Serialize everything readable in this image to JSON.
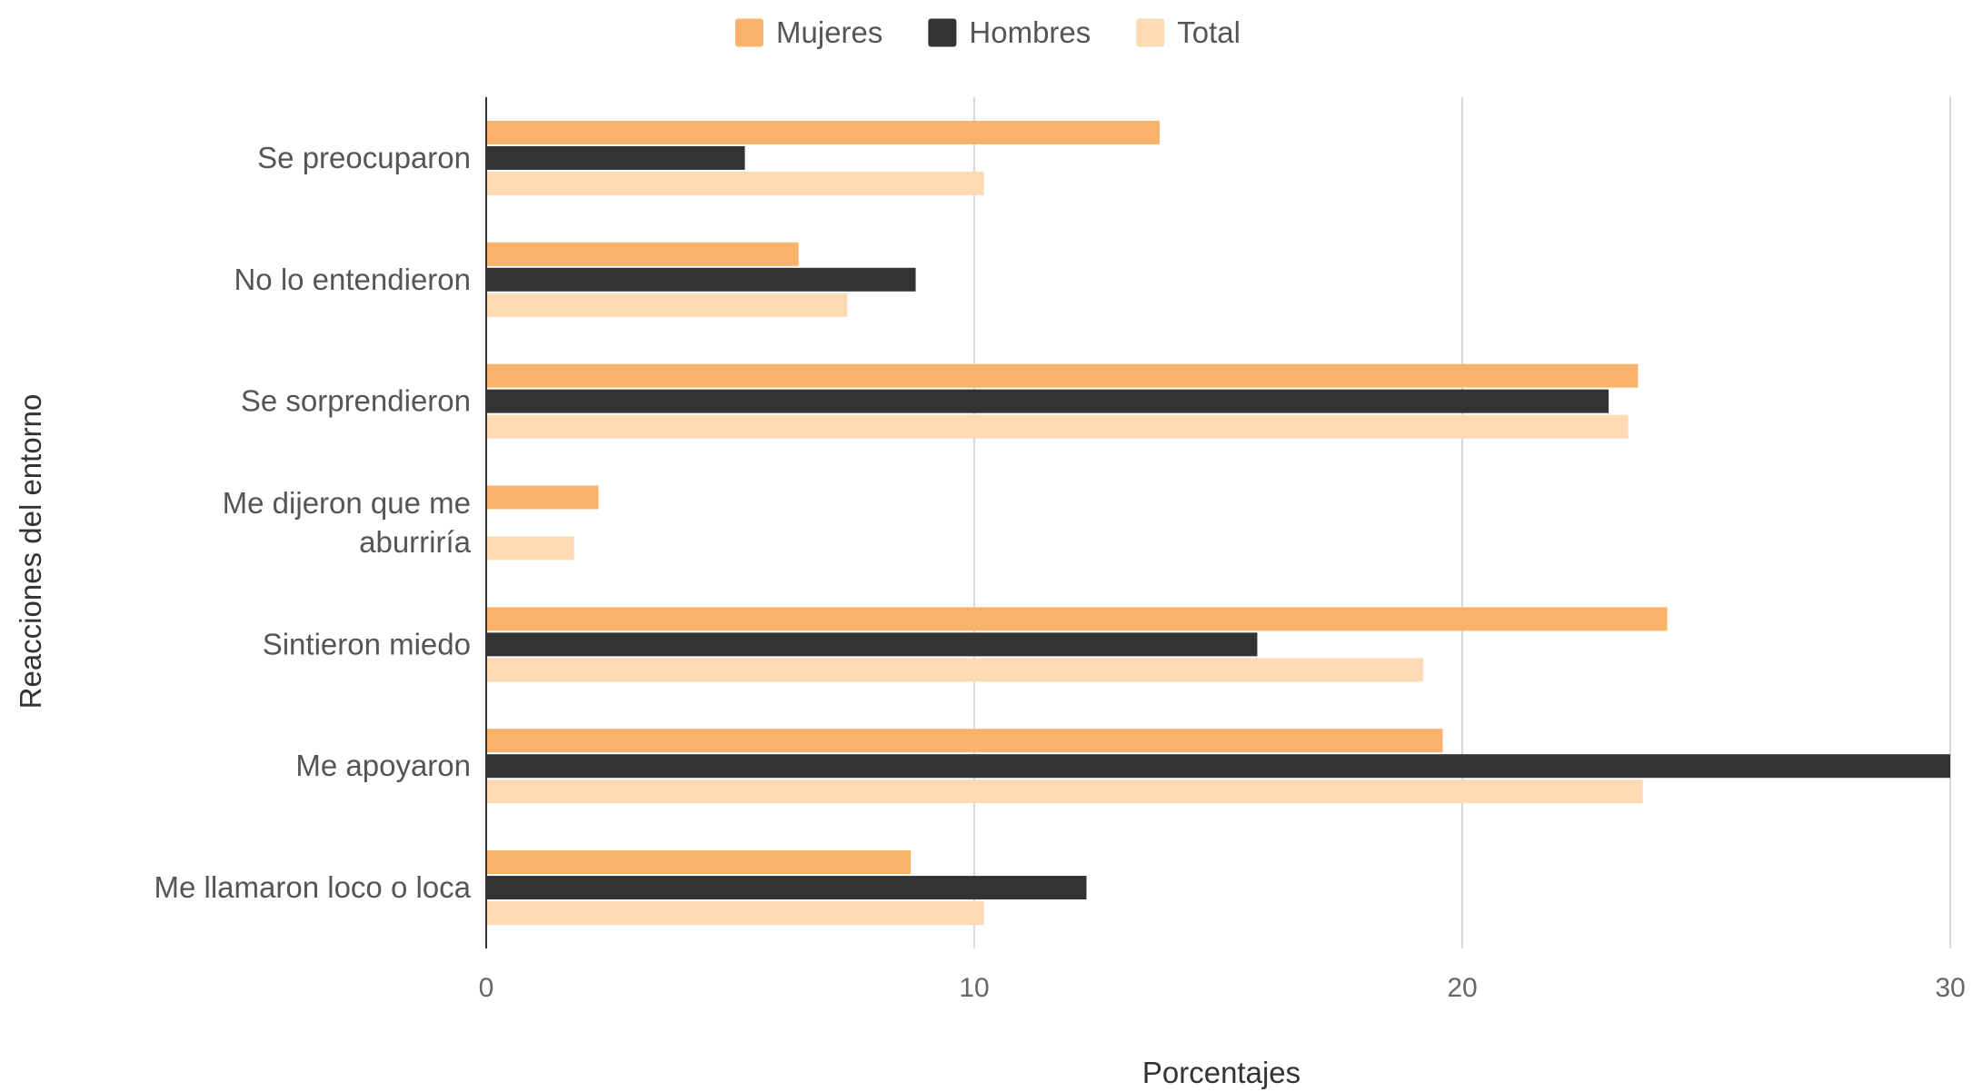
{
  "chart_data": {
    "type": "bar",
    "orientation": "horizontal",
    "categories": [
      "Se preocuparon",
      "No lo entendieron",
      "Se sorprendieron",
      "Me dijeron que me aburriría",
      "Sintieron miedo",
      "Me apoyaron",
      "Me llamaron loco o loca"
    ],
    "category_lines": [
      [
        "Se preocuparon"
      ],
      [
        "No lo entendieron"
      ],
      [
        "Se sorprendieron"
      ],
      [
        "Me dijeron que me",
        "aburriría"
      ],
      [
        "Sintieron miedo"
      ],
      [
        "Me apoyaron"
      ],
      [
        "Me llamaron loco o loca"
      ]
    ],
    "series": [
      {
        "name": "Mujeres",
        "color": "#f9b26b",
        "values": [
          13.8,
          6.4,
          23.6,
          2.3,
          24.2,
          19.6,
          8.7
        ]
      },
      {
        "name": "Hombres",
        "color": "#333333",
        "values": [
          5.3,
          8.8,
          23.0,
          0,
          15.8,
          30.0,
          12.3
        ]
      },
      {
        "name": "Total",
        "color": "#fdd9b4",
        "values": [
          10.2,
          7.4,
          23.4,
          1.8,
          19.2,
          23.7,
          10.2
        ]
      }
    ],
    "xlim": [
      0,
      30
    ],
    "xticks": [
      0,
      10,
      20,
      30
    ],
    "xlabel": "Porcentajes",
    "ylabel": "Reacciones del entorno",
    "grid": true,
    "legend_position": "top-center"
  }
}
